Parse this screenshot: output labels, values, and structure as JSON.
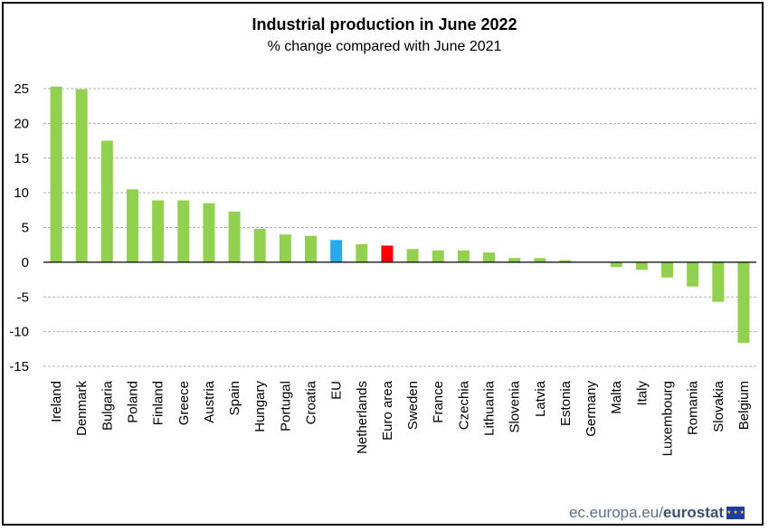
{
  "title": "Industrial production in June 2022",
  "subtitle": "% change compared with June 2021",
  "footer": {
    "site": "ec.europa.eu/",
    "brand": "eurostat",
    "flag_icon": "eu-flag-icon"
  },
  "colors": {
    "default": "#92d050",
    "EU": "#2aa9e8",
    "Euro area": "#ff0000",
    "grid": "#b0b0b0"
  },
  "chart_data": {
    "type": "bar",
    "title": "Industrial production in June 2022",
    "subtitle": "% change compared with June 2021",
    "xlabel": "",
    "ylabel": "",
    "ylim": [
      -15,
      25
    ],
    "yticks": [
      25,
      20,
      15,
      10,
      5,
      0,
      -5,
      -10,
      -15
    ],
    "grid": true,
    "categories": [
      "Ireland",
      "Denmark",
      "Bulgaria",
      "Poland",
      "Finland",
      "Greece",
      "Austria",
      "Spain",
      "Hungary",
      "Portugal",
      "Croatia",
      "EU",
      "Netherlands",
      "Euro area",
      "Sweden",
      "France",
      "Czechia",
      "Lithuania",
      "Slovenia",
      "Latvia",
      "Estonia",
      "Germany",
      "Malta",
      "Italy",
      "Luxembourg",
      "Romania",
      "Slovakia",
      "Belgium"
    ],
    "values": [
      25.3,
      24.9,
      17.5,
      10.5,
      8.9,
      8.9,
      8.5,
      7.3,
      4.8,
      4.0,
      3.8,
      3.2,
      2.6,
      2.4,
      1.9,
      1.7,
      1.7,
      1.4,
      0.6,
      0.6,
      0.3,
      0.0,
      -0.7,
      -1.1,
      -2.2,
      -3.5,
      -5.7,
      -11.6
    ]
  }
}
